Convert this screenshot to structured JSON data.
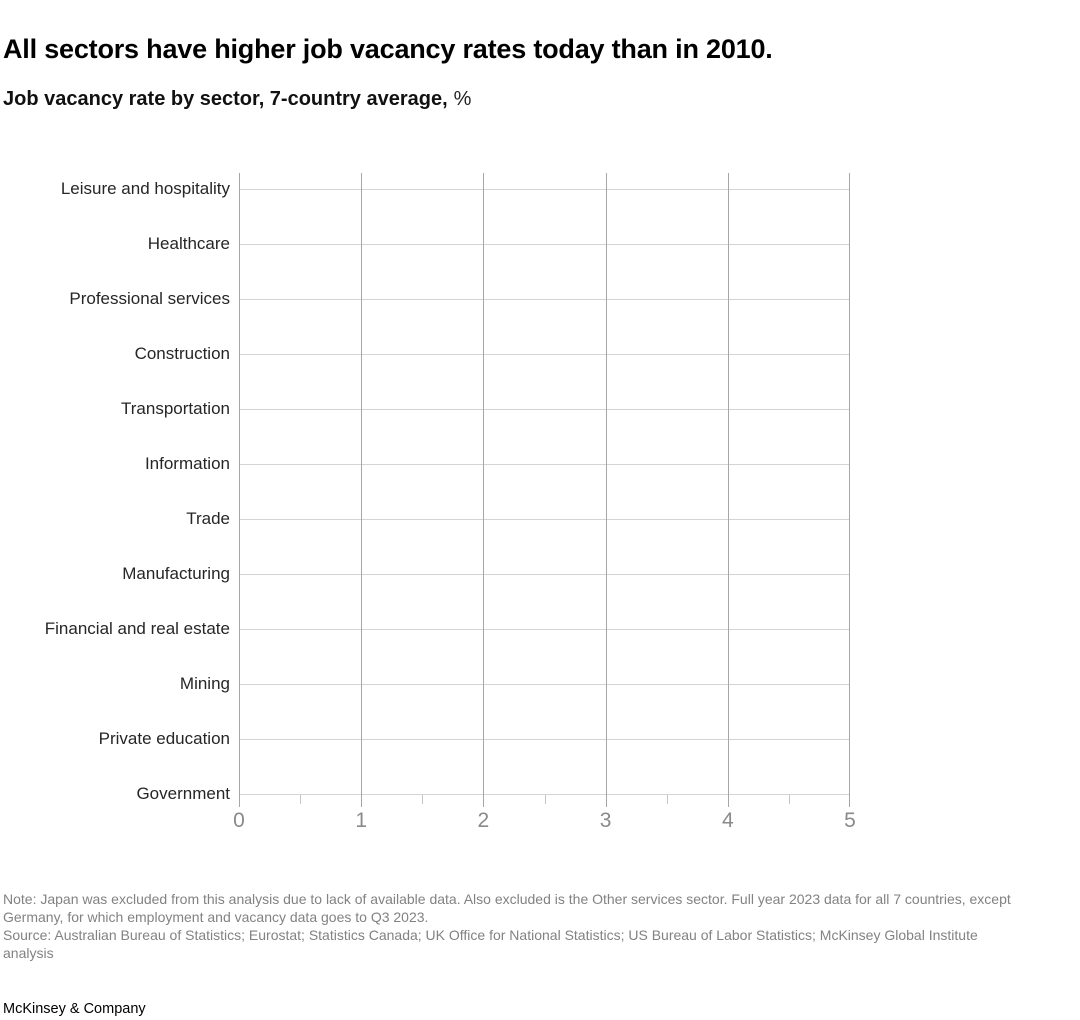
{
  "page": {
    "title": "All sectors have higher job vacancy rates today than in 2010.",
    "subtitle_bold": "Job vacancy rate by sector, 7-country average,",
    "subtitle_unit": "%"
  },
  "chart_data": {
    "type": "bar",
    "orientation": "horizontal",
    "title": "Job vacancy rate by sector, 7-country average, %",
    "categories": [
      "Leisure and hospitality",
      "Healthcare",
      "Professional services",
      "Construction",
      "Transportation",
      "Information",
      "Trade",
      "Manufacturing",
      "Financial and real estate",
      "Mining",
      "Private education",
      "Government"
    ],
    "series": [],
    "bars_rendered": false,
    "xlabel": "",
    "ylabel": "",
    "xlim": [
      0,
      5
    ],
    "x_tick_labels": [
      "0",
      "1",
      "2",
      "3",
      "4",
      "5"
    ],
    "x_minor_tick_step": 0.5,
    "grid": "on",
    "legend": "none"
  },
  "footnotes": {
    "note_lines": [
      "Note: Japan was excluded from this analysis due to lack of available data. Also excluded is the Other services sector. Full year 2023 data for all 7 countries, except",
      "Germany, for which employment and vacancy data goes to Q3 2023."
    ],
    "source_lines": [
      "Source: Australian Bureau of Statistics; Eurostat; Statistics Canada; UK Office for National Statistics; US Bureau of Labor Statistics; McKinsey Global Institute",
      "analysis"
    ]
  },
  "footer": {
    "brand": "McKinsey & Company"
  },
  "colors": {
    "background": "#ffffff",
    "title_text": "#000000",
    "category_label": "#262626",
    "axis_tick_label": "#8a8a8a",
    "vertical_gridline": "#a6a6a6",
    "horizontal_gridline": "#d4d4d4",
    "footnote_text": "#828282"
  }
}
